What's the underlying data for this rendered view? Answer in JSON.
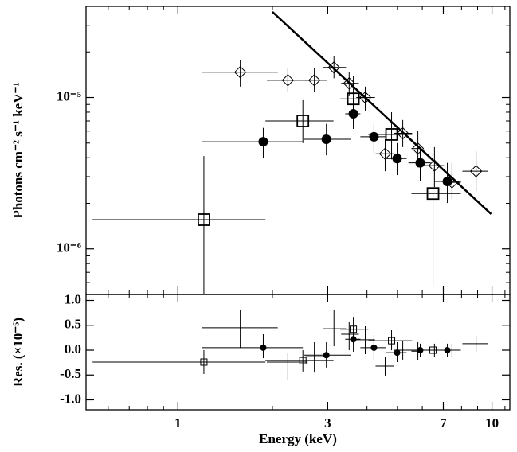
{
  "chart_data": [
    {
      "type": "scatter",
      "y_label": "Photons cm⁻² s⁻¹ keV⁻¹",
      "ylog": true,
      "ylim": [
        5e-07,
        4e-05
      ],
      "yticks": [
        {
          "value": 1e-06,
          "label": "10⁻⁶"
        },
        {
          "value": 1e-05,
          "label": "10⁻⁵"
        }
      ],
      "yminorticks": [
        6e-07,
        7e-07,
        8e-07,
        9e-07,
        2e-06,
        3e-06,
        4e-06,
        5e-06,
        6e-06,
        7e-06,
        8e-06,
        9e-06,
        2e-05,
        3e-05
      ],
      "series": [
        {
          "marker": "diamond",
          "color": "#000000",
          "x": [
            1.58,
            2.24,
            2.72,
            3.14,
            3.51,
            3.95,
            4.57,
            5.2,
            5.81,
            6.56,
            7.46,
            8.9
          ],
          "values": [
            1.47e-05,
            1.3e-05,
            1.3e-05,
            1.58e-05,
            1.24e-05,
            1e-05,
            4.25e-06,
            5.8e-06,
            4.6e-06,
            3.55e-06,
            2.75e-06,
            3.26e-06
          ],
          "x_low": [
            1.19,
            1.92,
            2.55,
            2.9,
            3.31,
            3.7,
            4.26,
            4.87,
            5.54,
            6.12,
            7.04,
            8.05
          ],
          "x_high": [
            2.08,
            2.59,
            2.98,
            3.43,
            3.77,
            4.24,
            4.87,
            5.57,
            5.91,
            7.04,
            7.96,
            9.71
          ],
          "y_low": [
            1.18e-05,
            1.09e-05,
            1.09e-05,
            1.34e-05,
            1.02e-05,
            8.2e-06,
            3.26e-06,
            4.7e-06,
            3.46e-06,
            2.56e-06,
            2.14e-06,
            2.41e-06
          ],
          "y_high": [
            1.76e-05,
            1.56e-05,
            1.56e-05,
            1.87e-05,
            1.47e-05,
            1.18e-05,
            5.3e-06,
            7.1e-06,
            6e-06,
            4.7e-06,
            3.7e-06,
            4.4e-06
          ]
        },
        {
          "marker": "square",
          "color": "#000000",
          "x": [
            1.21,
            2.5,
            3.62,
            4.79,
            6.49
          ],
          "values": [
            1.56e-06,
            7e-06,
            9.8e-06,
            5.7e-06,
            2.32e-06
          ],
          "x_low": [
            0.535,
            1.9,
            3.29,
            4.04,
            5.54
          ],
          "x_high": [
            1.9,
            3.13,
            4.04,
            5.57,
            7.96
          ],
          "y_low": [
            4e-07,
            5e-06,
            6.7e-06,
            3.9e-06,
            5.7e-07
          ],
          "y_high": [
            4.1e-06,
            9.6e-06,
            1.38e-05,
            8e-06,
            3.46e-06
          ]
        },
        {
          "marker": "circle",
          "color": "#000000",
          "x": [
            1.87,
            2.97,
            3.62,
            4.21,
            4.99,
            5.91,
            7.21
          ],
          "values": [
            5.1e-06,
            5.3e-06,
            7.8e-06,
            5.5e-06,
            3.95e-06,
            3.7e-06,
            2.79e-06
          ],
          "x_low": [
            1.19,
            2.52,
            3.41,
            3.81,
            4.6,
            5.42,
            6.56
          ],
          "x_high": [
            2.5,
            3.56,
            3.81,
            4.6,
            5.35,
            6.38,
            7.96
          ],
          "y_low": [
            4e-06,
            4.15e-06,
            6.2e-06,
            4.3e-06,
            3.07e-06,
            2.79e-06,
            2.01e-06
          ],
          "y_high": [
            6.3e-06,
            6.7e-06,
            9.6e-06,
            6.7e-06,
            5e-06,
            4.7e-06,
            3.7e-06
          ]
        },
        {
          "marker": "line",
          "color": "#000000",
          "x": [
            2.0,
            9.94
          ],
          "values": [
            3.68e-05,
            1.7e-06
          ]
        }
      ]
    },
    {
      "type": "scatter",
      "x_label": "Energy (keV)",
      "y_label": "Res. (×10⁻⁵)",
      "xlog": true,
      "xlim": [
        0.51,
        11.4
      ],
      "xticks": [
        1,
        3,
        7,
        10
      ],
      "xminorticks": [
        0.6,
        0.7,
        0.8,
        0.9,
        2,
        4,
        5,
        6,
        8,
        9,
        11
      ],
      "ylim": [
        -1.2,
        1.12
      ],
      "yticks": [
        {
          "value": -1,
          "label": "-1.0"
        },
        {
          "value": -0.5,
          "label": "-0.5"
        },
        {
          "value": 0,
          "label": "0.0"
        },
        {
          "value": 0.5,
          "label": "0.5"
        },
        {
          "value": 1,
          "label": "1.0"
        }
      ],
      "series": [
        {
          "marker": "cross",
          "color": "#000000",
          "x": [
            1.58,
            2.24,
            2.72,
            3.14,
            3.51,
            3.95,
            4.57,
            5.2,
            5.81,
            6.56,
            7.46,
            8.9
          ],
          "values": [
            0.45,
            -0.24,
            -0.13,
            0.43,
            0.32,
            0.21,
            -0.32,
            0,
            -0.02,
            0,
            0,
            0.13
          ],
          "x_low": [
            1.19,
            1.92,
            2.55,
            2.9,
            3.31,
            3.7,
            4.26,
            4.87,
            5.54,
            6.12,
            7.04,
            8.05
          ],
          "x_high": [
            2.08,
            2.59,
            2.98,
            3.43,
            3.77,
            4.24,
            4.87,
            5.57,
            5.91,
            7.04,
            7.96,
            9.71
          ],
          "y_low": [
            0.05,
            -0.61,
            -0.45,
            0.08,
            0,
            -0.08,
            -0.51,
            -0.19,
            -0.2,
            -0.13,
            -0.13,
            -0.03
          ],
          "y_high": [
            0.8,
            -0.05,
            0.16,
            0.8,
            0.56,
            0.48,
            -0.13,
            0.19,
            0.16,
            0.13,
            0.13,
            0.29
          ]
        },
        {
          "marker": "square",
          "color": "#000000",
          "x": [
            1.21,
            2.5,
            3.62,
            4.79,
            6.49
          ],
          "values": [
            -0.24,
            -0.21,
            0.42,
            0.19,
            0
          ],
          "x_low": [
            0.535,
            1.9,
            3.29,
            4.04,
            5.54
          ],
          "x_high": [
            1.9,
            3.13,
            4.04,
            5.57,
            7.96
          ],
          "y_low": [
            -0.48,
            -0.43,
            0.13,
            0,
            -0.13
          ],
          "y_high": [
            0,
            0,
            0.67,
            0.4,
            0.13
          ]
        },
        {
          "marker": "circle",
          "color": "#000000",
          "x": [
            1.87,
            2.97,
            3.62,
            4.21,
            4.99,
            5.91,
            7.21
          ],
          "values": [
            0.05,
            -0.1,
            0.22,
            0.05,
            -0.05,
            0,
            0
          ],
          "x_low": [
            1.19,
            2.52,
            3.41,
            3.81,
            4.6,
            5.42,
            6.56
          ],
          "x_high": [
            2.5,
            3.56,
            3.81,
            4.6,
            5.35,
            6.38,
            7.96
          ],
          "y_low": [
            -0.16,
            -0.35,
            -0.03,
            -0.2,
            -0.24,
            -0.13,
            -0.13
          ],
          "y_high": [
            0.32,
            0.16,
            0.48,
            0.3,
            0.16,
            0.13,
            0.13
          ]
        }
      ]
    }
  ]
}
